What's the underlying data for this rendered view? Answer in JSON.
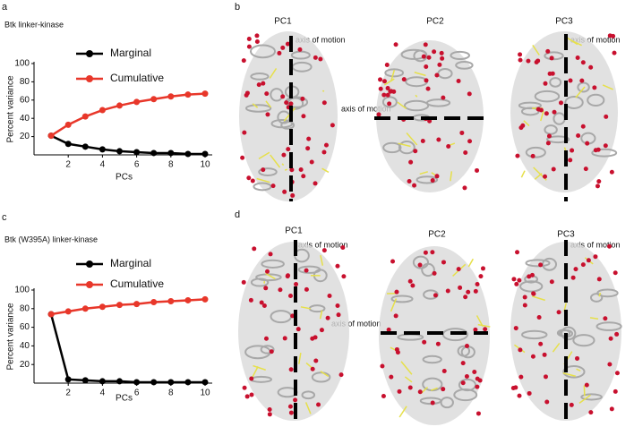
{
  "chart_data": [
    {
      "type": "line",
      "panel": "a",
      "title": "Btk linker-kinase",
      "xlabel": "PCs",
      "ylabel": "Percent variance",
      "x": [
        1,
        2,
        3,
        4,
        5,
        6,
        7,
        8,
        9,
        10
      ],
      "series": [
        {
          "name": "Marginal",
          "color": "#000000",
          "values": [
            21,
            12,
            9,
            6,
            4,
            3,
            2,
            2,
            1,
            1
          ]
        },
        {
          "name": "Cumulative",
          "color": "#e8372a",
          "values": [
            21,
            33,
            42,
            49,
            54,
            58,
            61,
            64,
            66,
            67
          ]
        }
      ],
      "xlim": [
        0,
        10
      ],
      "xticks": [
        2,
        4,
        6,
        8,
        10
      ],
      "ylim": [
        0,
        100
      ],
      "yticks": [
        20,
        40,
        60,
        80,
        100
      ]
    },
    {
      "type": "line",
      "panel": "c",
      "title": "Btk (W395A) linker-kinase",
      "xlabel": "PCs",
      "ylabel": "Percent variance",
      "x": [
        1,
        2,
        3,
        4,
        5,
        6,
        7,
        8,
        9,
        10
      ],
      "series": [
        {
          "name": "Marginal",
          "color": "#000000",
          "values": [
            74,
            4,
            3,
            2,
            2,
            1,
            1,
            1,
            1,
            1
          ]
        },
        {
          "name": "Cumulative",
          "color": "#e8372a",
          "values": [
            74,
            77,
            80,
            82,
            84,
            85,
            87,
            88,
            89,
            90
          ]
        }
      ],
      "xlim": [
        0,
        10
      ],
      "xticks": [
        2,
        4,
        6,
        8,
        10
      ],
      "ylim": [
        0,
        100
      ],
      "yticks": [
        20,
        40,
        60,
        80,
        100
      ]
    }
  ],
  "panels": [
    {
      "label": "b",
      "structures": [
        {
          "title": "PC1",
          "annotation": "axis of motion"
        },
        {
          "title": "PC2",
          "annotation": "axis of motion"
        },
        {
          "title": "PC3",
          "annotation": "axis of motion"
        }
      ]
    },
    {
      "label": "d",
      "structures": [
        {
          "title": "PC1",
          "annotation": "axis of motion"
        },
        {
          "title": "PC2",
          "annotation": "axis of motion"
        },
        {
          "title": "PC3",
          "annotation": "axis of motion"
        }
      ]
    }
  ]
}
